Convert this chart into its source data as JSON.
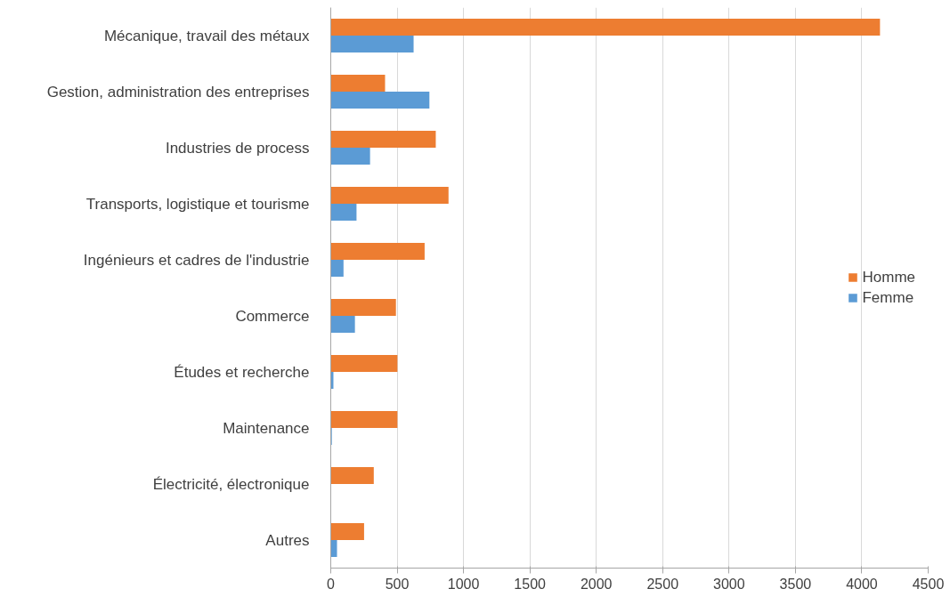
{
  "chart_data": {
    "type": "bar",
    "orientation": "horizontal",
    "categories": [
      "Mécanique, travail des métaux",
      "Gestion, administration des entreprises",
      "Industries de process",
      "Transports, logistique et tourisme",
      "Ingénieurs et cadres de l'industrie",
      "Commerce",
      "Études et recherche",
      "Maintenance",
      "Électricité, électronique",
      "Autres"
    ],
    "series": [
      {
        "name": "Homme",
        "color": "#ed7d31",
        "values": [
          4137,
          409,
          791,
          887,
          707,
          491,
          502,
          502,
          324,
          251
        ]
      },
      {
        "name": "Femme",
        "color": "#5b9bd5",
        "values": [
          624,
          743,
          296,
          194,
          96,
          182,
          20,
          8,
          0,
          47
        ]
      }
    ],
    "xlim": [
      0,
      4500
    ],
    "xticks": [
      0,
      500,
      1000,
      1500,
      2000,
      2500,
      3000,
      3500,
      4000,
      4500
    ],
    "grid": "x",
    "legend": "right"
  }
}
